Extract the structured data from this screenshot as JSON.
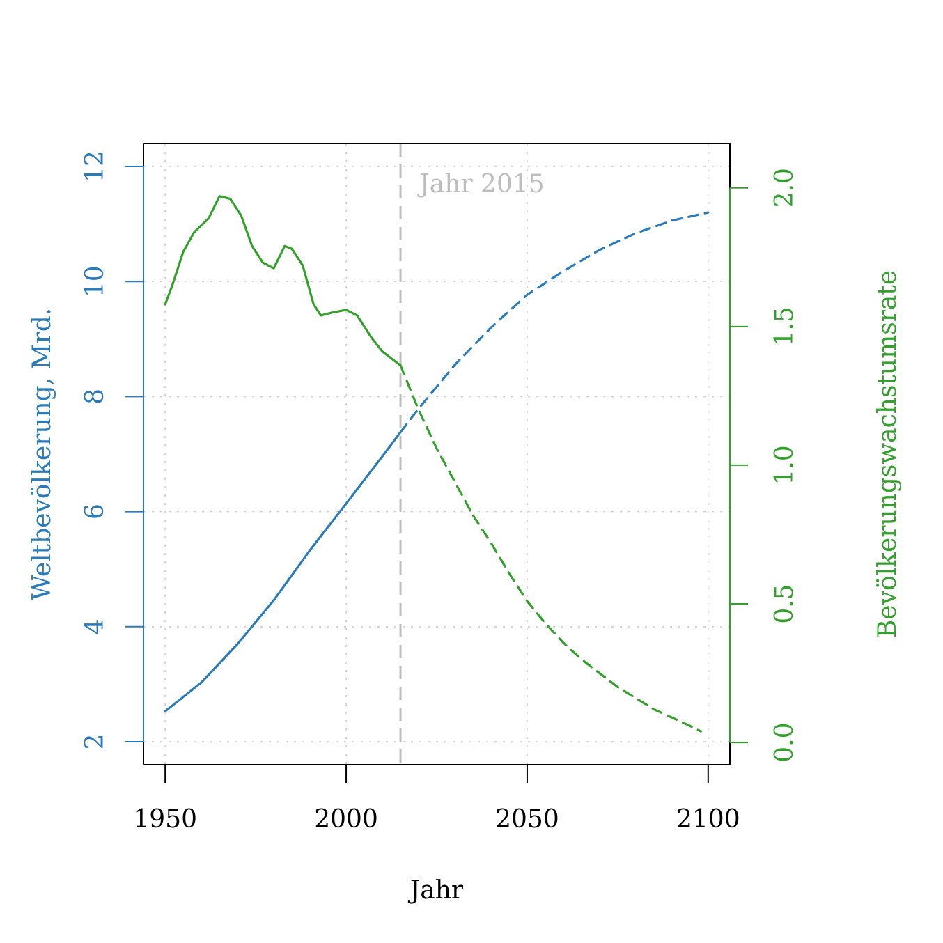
{
  "chart_data": {
    "type": "line",
    "xlabel": "Jahr",
    "ylabel_left": "Weltbevölkerung, Mrd.",
    "ylabel_right": "Bevölkerungswachstumsrate",
    "xlim": [
      1944,
      2106
    ],
    "ylim_left": [
      1.6,
      12.4
    ],
    "ylim_right": [
      -0.08,
      2.16
    ],
    "x_ticks": [
      "1950",
      "2000",
      "2050",
      "2100"
    ],
    "y_ticks_left": [
      "2",
      "4",
      "6",
      "8",
      "10",
      "12"
    ],
    "y_ticks_right": [
      "0.0",
      "0.5",
      "1.0",
      "1.5",
      "2.0"
    ],
    "grid": true,
    "annotation": {
      "x": 2015,
      "text": "Jahr 2015"
    },
    "colors": {
      "population": "#2b7bb9",
      "growth": "#33a02c",
      "grid": "#d0d0d0",
      "marker": "#bdbdbd",
      "axis": "#000000"
    },
    "series": [
      {
        "key": "population_hist",
        "axis": "left",
        "style": "solid",
        "color": "#2b7bb9",
        "points": [
          [
            1950,
            2.53
          ],
          [
            1960,
            3.03
          ],
          [
            1970,
            3.7
          ],
          [
            1980,
            4.46
          ],
          [
            1990,
            5.33
          ],
          [
            2000,
            6.14
          ],
          [
            2010,
            6.96
          ],
          [
            2015,
            7.38
          ]
        ]
      },
      {
        "key": "population_proj",
        "axis": "left",
        "style": "dashed",
        "color": "#2b7bb9",
        "points": [
          [
            2015,
            7.38
          ],
          [
            2020,
            7.79
          ],
          [
            2030,
            8.55
          ],
          [
            2040,
            9.2
          ],
          [
            2050,
            9.77
          ],
          [
            2060,
            10.18
          ],
          [
            2070,
            10.55
          ],
          [
            2080,
            10.84
          ],
          [
            2090,
            11.06
          ],
          [
            2100,
            11.2
          ]
        ]
      },
      {
        "key": "growth_hist",
        "axis": "right",
        "style": "solid",
        "color": "#33a02c",
        "points": [
          [
            1950,
            1.58
          ],
          [
            1952,
            1.65
          ],
          [
            1955,
            1.77
          ],
          [
            1958,
            1.84
          ],
          [
            1962,
            1.89
          ],
          [
            1965,
            1.97
          ],
          [
            1968,
            1.96
          ],
          [
            1971,
            1.9
          ],
          [
            1974,
            1.79
          ],
          [
            1977,
            1.73
          ],
          [
            1980,
            1.71
          ],
          [
            1983,
            1.79
          ],
          [
            1985,
            1.78
          ],
          [
            1988,
            1.72
          ],
          [
            1991,
            1.58
          ],
          [
            1993,
            1.54
          ],
          [
            1996,
            1.55
          ],
          [
            2000,
            1.56
          ],
          [
            2003,
            1.54
          ],
          [
            2007,
            1.46
          ],
          [
            2010,
            1.41
          ],
          [
            2015,
            1.36
          ]
        ]
      },
      {
        "key": "growth_proj",
        "axis": "right",
        "style": "dashed",
        "color": "#33a02c",
        "points": [
          [
            2015,
            1.36
          ],
          [
            2020,
            1.2
          ],
          [
            2025,
            1.06
          ],
          [
            2030,
            0.94
          ],
          [
            2035,
            0.82
          ],
          [
            2040,
            0.72
          ],
          [
            2045,
            0.61
          ],
          [
            2050,
            0.51
          ],
          [
            2055,
            0.43
          ],
          [
            2060,
            0.36
          ],
          [
            2065,
            0.3
          ],
          [
            2070,
            0.25
          ],
          [
            2075,
            0.2
          ],
          [
            2080,
            0.16
          ],
          [
            2085,
            0.12
          ],
          [
            2090,
            0.09
          ],
          [
            2095,
            0.06
          ],
          [
            2098,
            0.04
          ]
        ]
      }
    ]
  }
}
